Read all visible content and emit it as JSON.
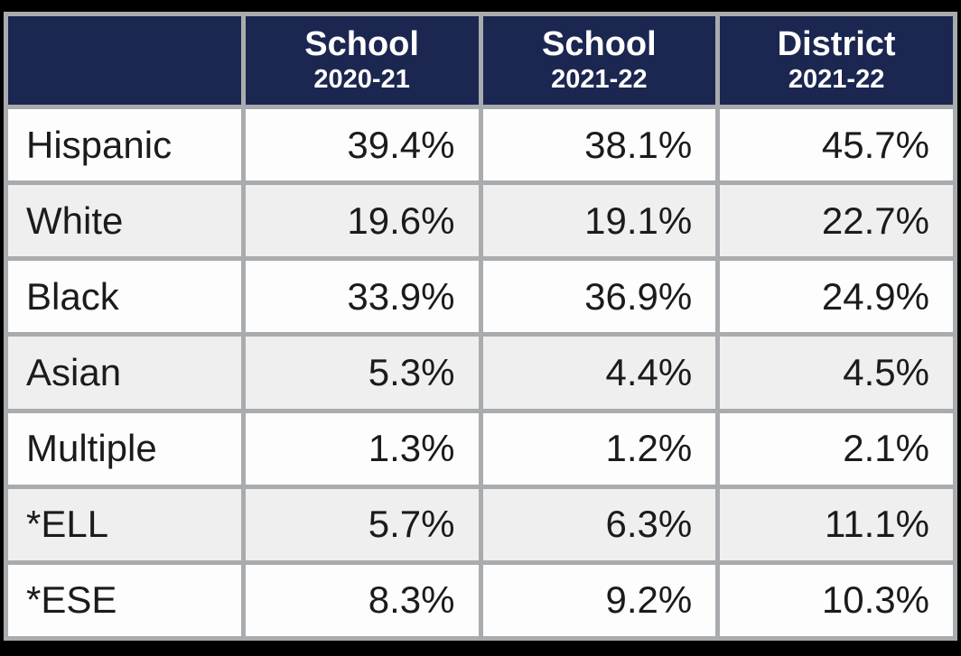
{
  "table": {
    "header": {
      "corner": "",
      "columns": [
        {
          "line1": "School",
          "line2": "2020-21"
        },
        {
          "line1": "School",
          "line2": "2021-22"
        },
        {
          "line1": "District",
          "line2": "2021-22"
        }
      ]
    },
    "rows": [
      {
        "label": "Hispanic",
        "values": [
          "39.4%",
          "38.1%",
          "45.7%"
        ]
      },
      {
        "label": "White",
        "values": [
          "19.6%",
          "19.1%",
          "22.7%"
        ]
      },
      {
        "label": "Black",
        "values": [
          "33.9%",
          "36.9%",
          "24.9%"
        ]
      },
      {
        "label": "Asian",
        "values": [
          "5.3%",
          "4.4%",
          "4.5%"
        ]
      },
      {
        "label": "Multiple",
        "values": [
          "1.3%",
          "1.2%",
          "2.1%"
        ]
      },
      {
        "label": "*ELL",
        "values": [
          "5.7%",
          "6.3%",
          "11.1%"
        ]
      },
      {
        "label": "*ESE",
        "values": [
          "8.3%",
          "9.2%",
          "10.3%"
        ]
      }
    ]
  },
  "colors": {
    "header_background": "#1b2750",
    "header_text": "#ffffff",
    "grid_border": "#a9acae",
    "row_white": "#fdfdfd",
    "row_gray": "#efefef",
    "body_text": "#1b1b1b",
    "page_background": "#000000"
  },
  "chart_data": {
    "type": "table",
    "columns": [
      "",
      "School 2020-21",
      "School 2021-22",
      "District 2021-22"
    ],
    "rows": [
      [
        "Hispanic",
        "39.4%",
        "38.1%",
        "45.7%"
      ],
      [
        "White",
        "19.6%",
        "19.1%",
        "22.7%"
      ],
      [
        "Black",
        "33.9%",
        "36.9%",
        "24.9%"
      ],
      [
        "Asian",
        "5.3%",
        "4.4%",
        "4.5%"
      ],
      [
        "Multiple",
        "1.3%",
        "1.2%",
        "2.1%"
      ],
      [
        "*ELL",
        "5.7%",
        "6.3%",
        "11.1%"
      ],
      [
        "*ESE",
        "8.3%",
        "9.2%",
        "10.3%"
      ]
    ]
  }
}
